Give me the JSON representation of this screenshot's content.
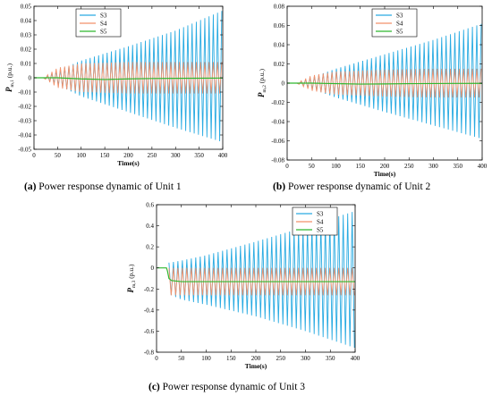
{
  "captions": [
    {
      "prefix": "(a)",
      "text": "Power response dynamic of Unit 1"
    },
    {
      "prefix": "(b)",
      "text": "Power response dynamic of Unit 2"
    },
    {
      "prefix": "(c)",
      "text": "Power response dynamic of Unit 3"
    }
  ],
  "colors": {
    "S3": "#29abe2",
    "S4": "#f2916b",
    "S5": "#2fb82f"
  },
  "chart_data": [
    {
      "type": "line",
      "xlabel": "Time(s)",
      "ylabel": "P",
      "ylabel_sub": "m,1",
      "ylabel_unit": "(p.u.)",
      "xlim": [
        0,
        400
      ],
      "ylim": [
        -0.05,
        0.05
      ],
      "xticks": [
        0,
        50,
        100,
        150,
        200,
        250,
        300,
        350,
        400
      ],
      "xtick_labels": [
        "0",
        "50",
        "100",
        "150",
        "200",
        "250",
        "300",
        "350",
        "400"
      ],
      "yticks": [
        -0.05,
        -0.04,
        -0.03,
        -0.02,
        -0.01,
        0,
        0.01,
        0.02,
        0.03,
        0.04,
        0.05
      ],
      "ytick_labels": [
        "-0.05",
        "-0.04",
        "-0.03",
        "-0.02",
        "-0.01",
        "0",
        "0.01",
        "0.02",
        "0.03",
        "0.04",
        "0.05"
      ],
      "legend": [
        "S3",
        "S4",
        "S5"
      ],
      "legend_position": "top-left",
      "series": [
        {
          "name": "S3",
          "kind": "oscillation",
          "start": 20,
          "envelope_x": [
            20,
            50,
            100,
            200,
            300,
            400
          ],
          "upper": [
            0,
            0.005,
            0.012,
            0.022,
            0.033,
            0.047
          ],
          "lower": [
            0,
            -0.005,
            -0.013,
            -0.024,
            -0.035,
            -0.045
          ]
        },
        {
          "name": "S4",
          "kind": "oscillation",
          "start": 20,
          "envelope_x": [
            20,
            50,
            100,
            200,
            300,
            400
          ],
          "upper": [
            0,
            0.007,
            0.01,
            0.011,
            0.011,
            0.011
          ],
          "lower": [
            0,
            -0.007,
            -0.01,
            -0.011,
            -0.011,
            -0.011
          ]
        },
        {
          "name": "S5",
          "kind": "line",
          "x": [
            0,
            20,
            50,
            100,
            150,
            200,
            250,
            300,
            350,
            400
          ],
          "y": [
            0,
            0,
            0,
            -0.0008,
            -0.0012,
            -0.0008,
            -0.0005,
            -0.0004,
            -0.0003,
            -0.0002
          ]
        }
      ]
    },
    {
      "type": "line",
      "xlabel": "Time(s)",
      "ylabel": "P",
      "ylabel_sub": "m,2",
      "ylabel_unit": "(p.u.)",
      "xlim": [
        0,
        400
      ],
      "ylim": [
        -0.08,
        0.08
      ],
      "xticks": [
        0,
        50,
        100,
        150,
        200,
        250,
        300,
        350,
        400
      ],
      "xtick_labels": [
        "0",
        "50",
        "100",
        "150",
        "200",
        "250",
        "300",
        "350",
        "400"
      ],
      "yticks": [
        -0.08,
        -0.06,
        -0.04,
        -0.02,
        0,
        0.02,
        0.04,
        0.06,
        0.08
      ],
      "ytick_labels": [
        "-0.08",
        "-0.06",
        "-0.04",
        "-0.02",
        "0",
        "0.02",
        "0.04",
        "0.06",
        "0.08"
      ],
      "legend": [
        "S3",
        "S4",
        "S5"
      ],
      "legend_position": "top-right",
      "series": [
        {
          "name": "S3",
          "kind": "oscillation",
          "start": 20,
          "envelope_x": [
            20,
            50,
            100,
            200,
            300,
            400
          ],
          "upper": [
            0,
            0.006,
            0.015,
            0.03,
            0.045,
            0.062
          ],
          "lower": [
            0,
            -0.006,
            -0.015,
            -0.03,
            -0.044,
            -0.058
          ]
        },
        {
          "name": "S4",
          "kind": "oscillation",
          "start": 20,
          "envelope_x": [
            20,
            50,
            100,
            200,
            300,
            400
          ],
          "upper": [
            0,
            0.008,
            0.012,
            0.014,
            0.015,
            0.015
          ],
          "lower": [
            0,
            -0.008,
            -0.012,
            -0.014,
            -0.015,
            -0.015
          ]
        },
        {
          "name": "S5",
          "kind": "line",
          "x": [
            0,
            20,
            50,
            100,
            150,
            200,
            250,
            300,
            350,
            400
          ],
          "y": [
            0,
            0,
            0,
            -0.0005,
            -0.001,
            -0.0008,
            -0.0005,
            -0.0004,
            -0.0003,
            -0.0002
          ]
        }
      ]
    },
    {
      "type": "line",
      "xlabel": "Time(s)",
      "ylabel": "P",
      "ylabel_sub": "m,3",
      "ylabel_unit": "(p.u.)",
      "xlim": [
        0,
        400
      ],
      "ylim": [
        -0.8,
        0.6
      ],
      "xticks": [
        0,
        50,
        100,
        150,
        200,
        250,
        300,
        350,
        400
      ],
      "xtick_labels": [
        "0",
        "50",
        "100",
        "150",
        "200",
        "250",
        "300",
        "350",
        "400"
      ],
      "yticks": [
        -0.8,
        -0.6,
        -0.4,
        -0.2,
        0,
        0.2,
        0.4,
        0.6
      ],
      "ytick_labels": [
        "-0.8",
        "-0.6",
        "-0.4",
        "-0.2",
        "0",
        "0.2",
        "0.4",
        "0.6"
      ],
      "legend": [
        "S3",
        "S4",
        "S5"
      ],
      "legend_position": "top-right",
      "series": [
        {
          "name": "S3",
          "kind": "oscillation",
          "start": 25,
          "envelope_x": [
            25,
            50,
            100,
            200,
            300,
            400
          ],
          "upper": [
            0.05,
            0.07,
            0.12,
            0.25,
            0.39,
            0.54
          ],
          "lower": [
            -0.25,
            -0.3,
            -0.35,
            -0.46,
            -0.6,
            -0.76
          ]
        },
        {
          "name": "S4",
          "kind": "oscillation",
          "start": 25,
          "envelope_x": [
            25,
            50,
            100,
            200,
            300,
            400
          ],
          "upper": [
            0.0,
            0.0,
            0.0,
            0.0,
            0.0,
            0.0
          ],
          "lower": [
            -0.26,
            -0.26,
            -0.26,
            -0.26,
            -0.26,
            -0.26
          ]
        },
        {
          "name": "S5",
          "kind": "line",
          "x": [
            0,
            20,
            22,
            25,
            30,
            50,
            100,
            200,
            300,
            400
          ],
          "y": [
            0,
            0,
            -0.03,
            -0.1,
            -0.12,
            -0.13,
            -0.13,
            -0.13,
            -0.13,
            -0.13
          ]
        }
      ]
    }
  ]
}
